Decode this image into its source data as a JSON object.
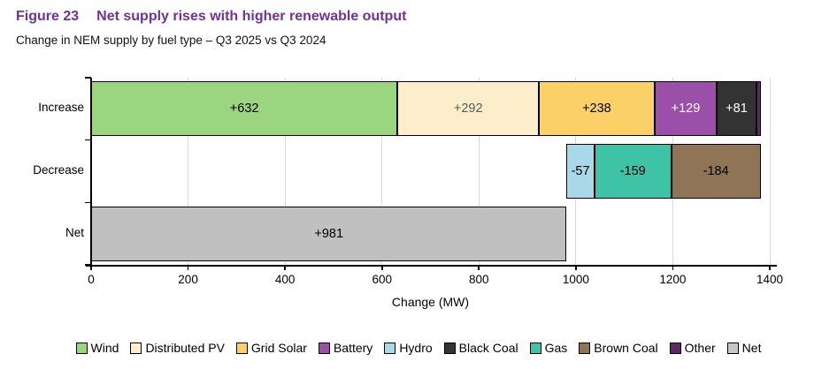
{
  "header": {
    "figure_label": "Figure 23",
    "title": "Net supply rises with higher renewable output",
    "subtitle": "Change in NEM supply by fuel type – Q3 2025 vs Q3 2024",
    "accent_color": "#7030A0"
  },
  "chart_data": {
    "type": "bar",
    "orientation": "horizontal-stacked",
    "xlabel": "Change (MW)",
    "xlim": [
      0,
      1400
    ],
    "xticks": [
      0,
      200,
      400,
      600,
      800,
      1000,
      1200,
      1400
    ],
    "grid": true,
    "categories": [
      "Increase",
      "Decrease",
      "Net"
    ],
    "rows": [
      {
        "category": "Increase",
        "start": 0,
        "segments": [
          {
            "name": "Wind",
            "value": 632,
            "label": "+632",
            "color": "#9CD57F",
            "label_color": "#000000"
          },
          {
            "name": "Distributed PV",
            "value": 292,
            "label": "+292",
            "color": "#FCEECB",
            "label_color": "#595959"
          },
          {
            "name": "Grid Solar",
            "value": 238,
            "label": "+238",
            "color": "#FBD167",
            "label_color": "#000000"
          },
          {
            "name": "Battery",
            "value": 129,
            "label": "+129",
            "color": "#9B4FA8",
            "label_color": "#FFFFFF"
          },
          {
            "name": "Black Coal",
            "value": 81,
            "label": "+81",
            "color": "#333333",
            "label_color": "#FFFFFF"
          },
          {
            "name": "Other",
            "value": 9,
            "label": "",
            "color": "#5E2A66",
            "label_color": "#FFFFFF"
          }
        ]
      },
      {
        "category": "Decrease",
        "start": 981,
        "segments": [
          {
            "name": "Hydro",
            "value": 57,
            "label": "-57",
            "color": "#A9D8E9",
            "label_color": "#000000"
          },
          {
            "name": "Gas",
            "value": 159,
            "label": "-159",
            "color": "#3EC3A7",
            "label_color": "#000000"
          },
          {
            "name": "Brown Coal",
            "value": 184,
            "label": "-184",
            "color": "#8F7456",
            "label_color": "#000000"
          }
        ]
      },
      {
        "category": "Net",
        "start": 0,
        "segments": [
          {
            "name": "Net",
            "value": 981,
            "label": "+981",
            "color": "#C0C0C0",
            "label_color": "#000000"
          }
        ]
      }
    ],
    "legend_position": "bottom",
    "legend": [
      {
        "label": "Wind",
        "color": "#9CD57F"
      },
      {
        "label": "Distributed PV",
        "color": "#FCEECB"
      },
      {
        "label": "Grid Solar",
        "color": "#FBD167"
      },
      {
        "label": "Battery",
        "color": "#9B4FA8"
      },
      {
        "label": "Hydro",
        "color": "#A9D8E9"
      },
      {
        "label": "Black Coal",
        "color": "#333333"
      },
      {
        "label": "Gas",
        "color": "#3EC3A7"
      },
      {
        "label": "Brown Coal",
        "color": "#8F7456"
      },
      {
        "label": "Other",
        "color": "#5E2A66"
      },
      {
        "label": "Net",
        "color": "#C8C8C8"
      }
    ]
  }
}
